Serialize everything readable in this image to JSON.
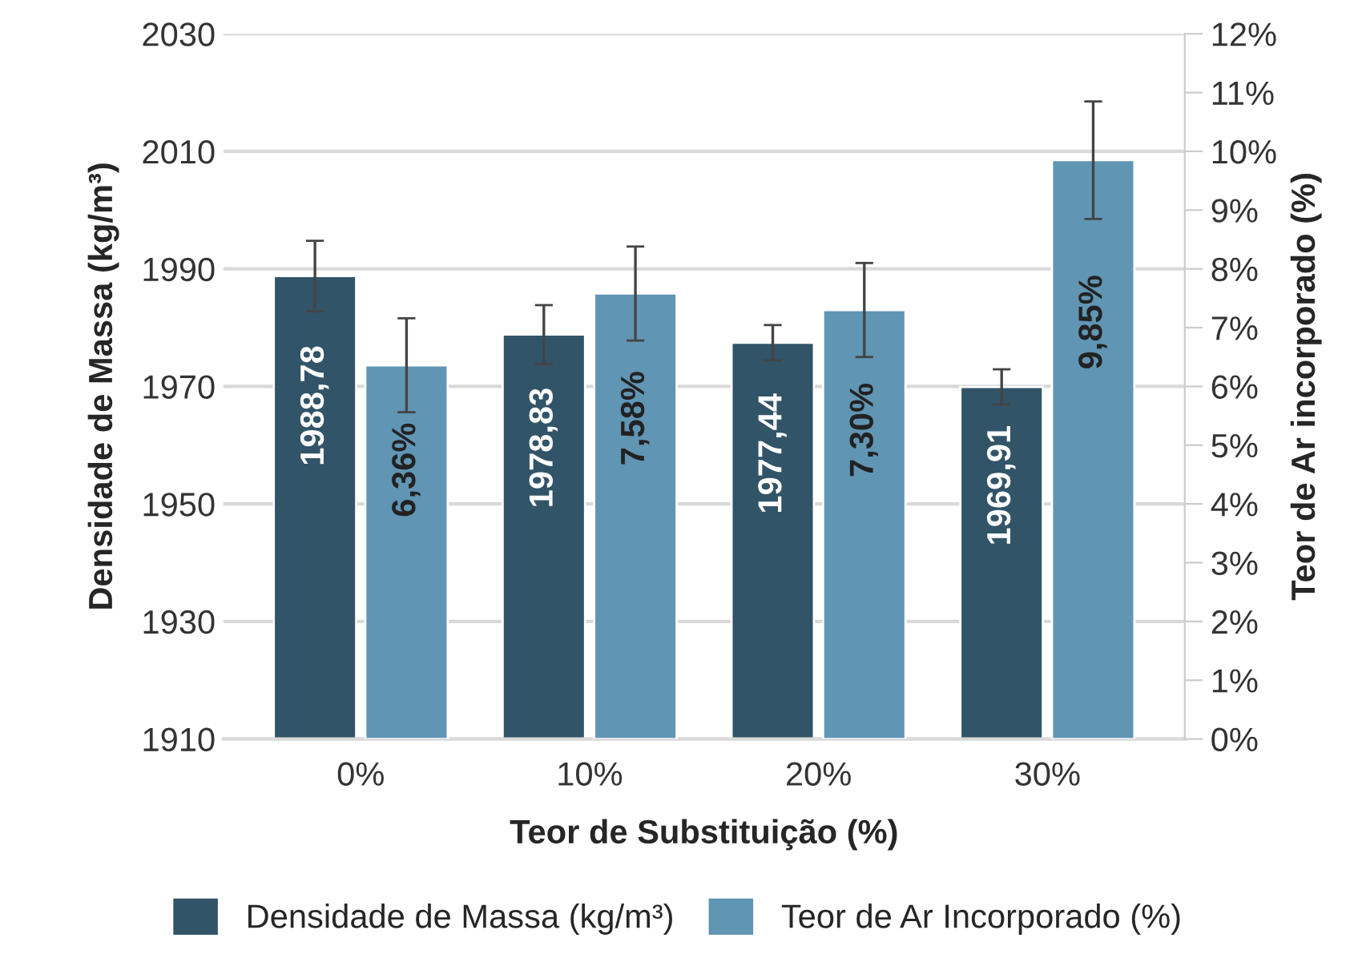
{
  "chart_data": {
    "type": "bar",
    "xlabel": "Teor de Substituição (%)",
    "ylabel": "Densidade de Massa (kg/m³)",
    "y2label": "Teor de Ar incorporado (%)",
    "categories": [
      "0%",
      "10%",
      "20%",
      "30%"
    ],
    "series": [
      {
        "name": "Densidade de Massa (kg/m³)",
        "color": "#325469",
        "values": [
          1988.78,
          1978.83,
          1977.44,
          1969.91
        ],
        "errors": [
          6,
          5,
          3,
          3
        ],
        "value_labels": [
          "1988,78",
          "1978,83",
          "1977,44",
          "1969,91"
        ]
      },
      {
        "name": "Teor de Ar Incorporado (%)",
        "color": "#6095b4",
        "axis": "y2",
        "values": [
          6.36,
          7.58,
          7.3,
          9.85
        ],
        "errors": [
          0.8,
          0.8,
          0.8,
          1.0
        ],
        "value_labels": [
          "6,36%",
          "7,58%",
          "7,30%",
          "9,85%"
        ]
      }
    ],
    "ylim": [
      1910,
      2030
    ],
    "yticks": [
      1910,
      1930,
      1950,
      1970,
      1990,
      2010,
      2030
    ],
    "y2lim": [
      0,
      12
    ],
    "y2ticks": [
      {
        "value": 0,
        "label": "0%"
      },
      {
        "value": 1,
        "label": "1%"
      },
      {
        "value": 2,
        "label": "2%"
      },
      {
        "value": 3,
        "label": "3%"
      },
      {
        "value": 4,
        "label": "4%"
      },
      {
        "value": 5,
        "label": "5%"
      },
      {
        "value": 6,
        "label": "6%"
      },
      {
        "value": 7,
        "label": "7%"
      },
      {
        "value": 8,
        "label": "8%"
      },
      {
        "value": 9,
        "label": "9%"
      },
      {
        "value": 10,
        "label": "10%"
      },
      {
        "value": 11,
        "label": "11%"
      },
      {
        "value": 12,
        "label": "12%"
      }
    ],
    "grid": "y",
    "legend": "bottom"
  }
}
